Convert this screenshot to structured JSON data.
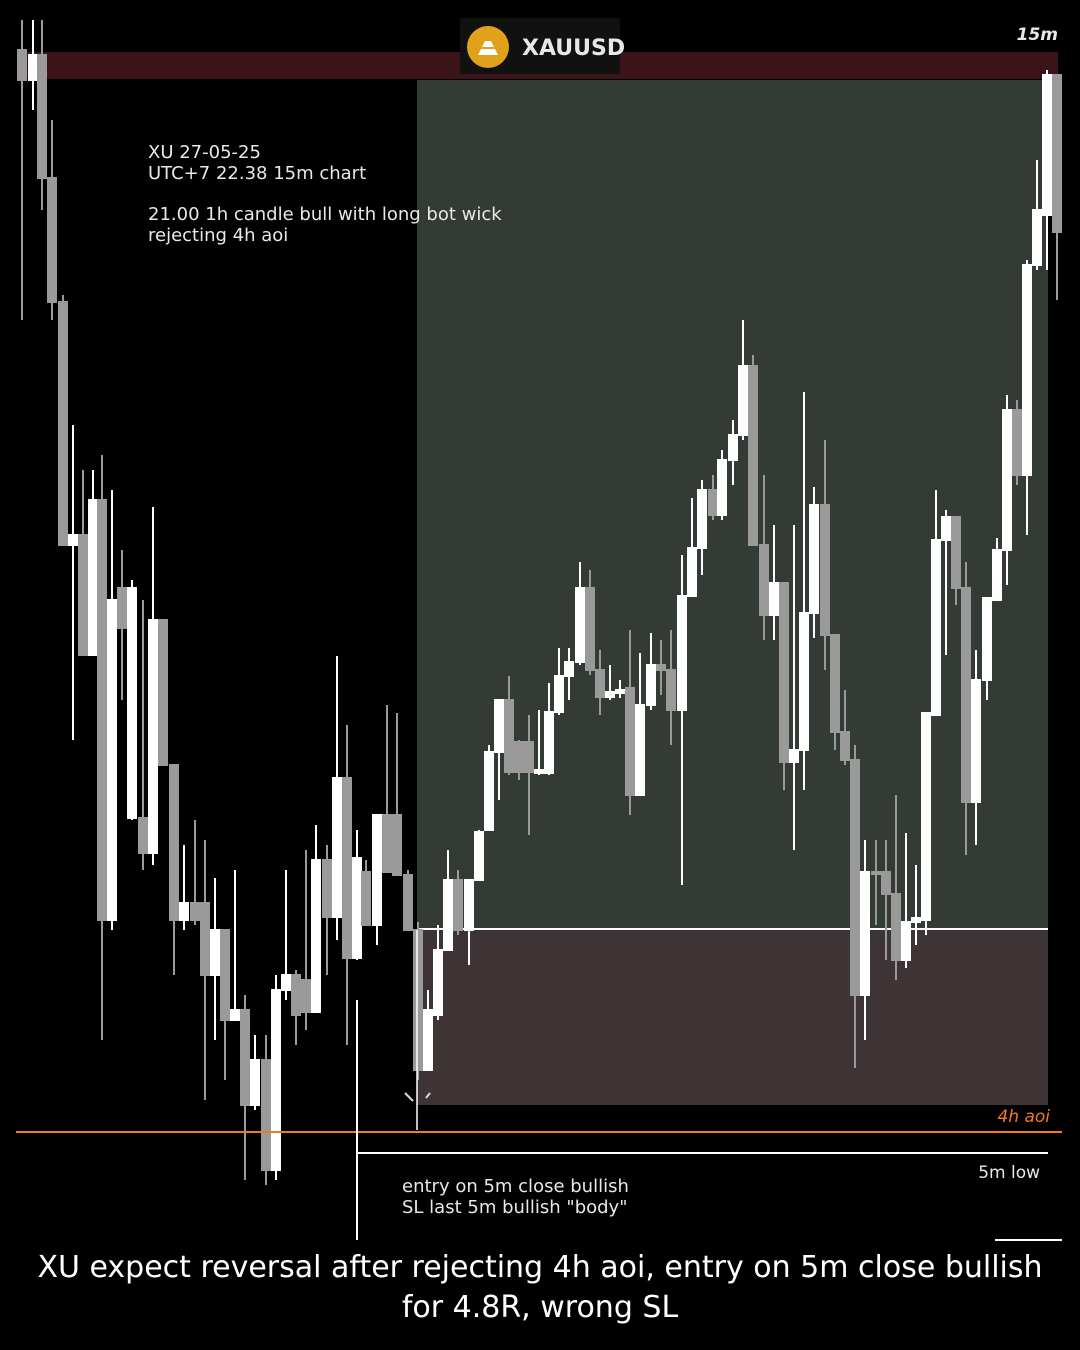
{
  "header": {
    "symbol": "XAUUSD",
    "timeframe": "15m"
  },
  "notes": [
    [
      "XU 27-05-25",
      "UTC+7 22.38 15m chart"
    ],
    [
      "21.00 1h candle bull with long bot wick",
      "rejecting 4h aoi"
    ]
  ],
  "labels": {
    "aoi": "4h aoi",
    "low": "5m low"
  },
  "entry_note": [
    "entry on 5m close bullish",
    "SL last 5m bullish \"body\""
  ],
  "caption": "XU expect reversal after rejecting 4h aoi, entry on 5m close bullish for 4.8R, wrong SL"
}
